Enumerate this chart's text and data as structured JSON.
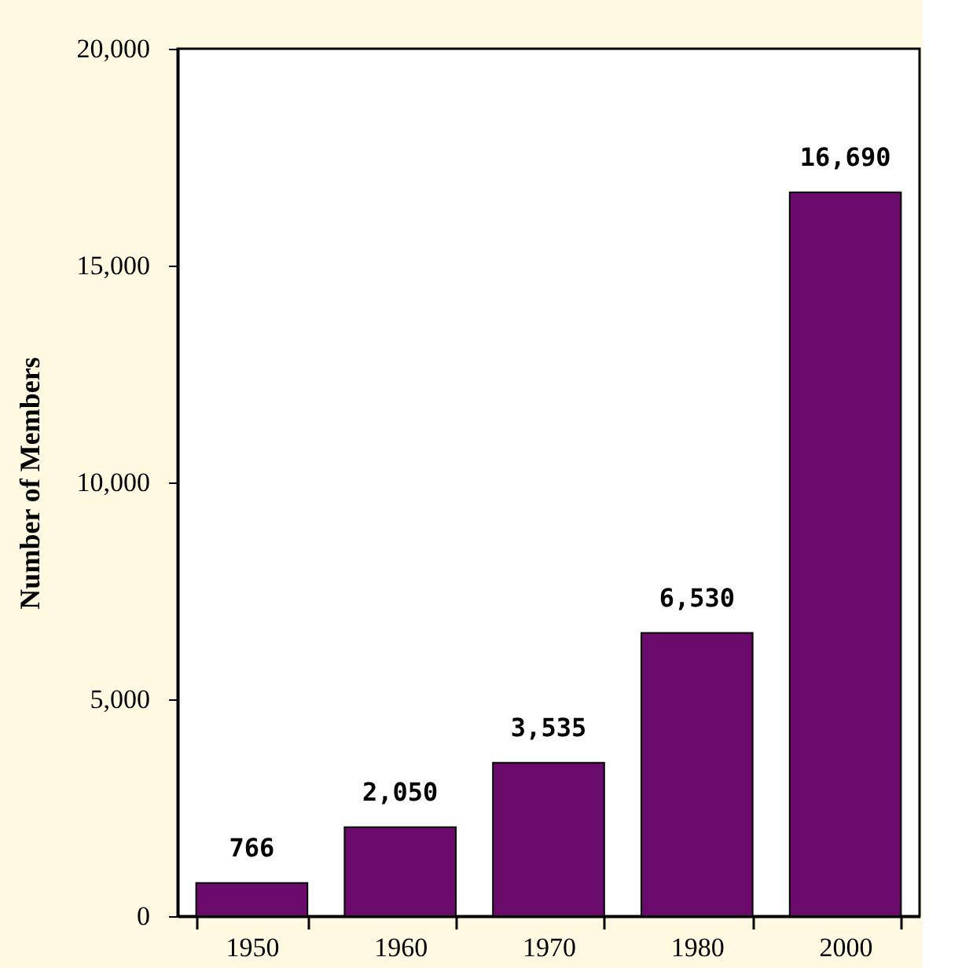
{
  "chart_data": {
    "type": "bar",
    "ylabel": "Number of Members",
    "categories": [
      "1950",
      "1960",
      "1970",
      "1980",
      "2000"
    ],
    "values": [
      766,
      2050,
      3535,
      6530,
      16690
    ],
    "value_labels": [
      "766",
      "2,050",
      "3,535",
      "6,530",
      "16,690"
    ],
    "color": "#6a0a6b",
    "ylim": [
      0,
      20000
    ],
    "yticks": [
      0,
      {
        "value": 5000,
        "label": "5,000"
      },
      {
        "value": 10000,
        "label": "10,000"
      },
      {
        "value": 15000,
        "label": "15,000"
      },
      {
        "value": 20000,
        "label": "20,000"
      }
    ],
    "grid": false
  }
}
